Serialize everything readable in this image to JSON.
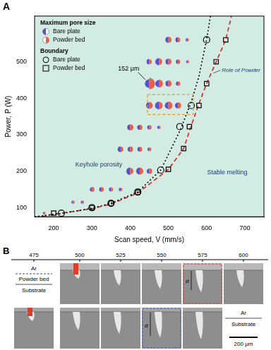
{
  "chart_data": {
    "type": "scatter",
    "title": "A",
    "x_label": "Scan speed, V (mm/s)",
    "y_label": "Power, P (W)",
    "xlim": [
      150,
      750
    ],
    "xticks": [
      200,
      300,
      400,
      500,
      600,
      700
    ],
    "ylim": [
      75,
      625
    ],
    "yticks": [
      100,
      200,
      300,
      400,
      500
    ],
    "grid": false,
    "series": [
      {
        "name": "Bare plate",
        "legend_group": "Maximum pore size",
        "color": "#5a4fcf",
        "marker": "half-circle",
        "x": [
          500,
          525,
          550,
          450,
          475,
          500,
          525,
          550,
          450,
          475,
          500,
          525,
          450,
          475,
          500,
          525,
          400,
          425,
          450,
          475,
          375,
          400,
          425,
          450,
          400,
          425,
          450,
          300,
          325,
          350,
          375,
          250,
          275,
          175
        ],
        "y": [
          560,
          560,
          560,
          500,
          500,
          500,
          500,
          500,
          440,
          440,
          440,
          440,
          380,
          380,
          380,
          380,
          320,
          320,
          320,
          320,
          260,
          260,
          260,
          260,
          200,
          200,
          200,
          150,
          150,
          150,
          150,
          115,
          115,
          85
        ],
        "pore_size": [
          45,
          30,
          15,
          35,
          60,
          40,
          20,
          10,
          90,
          60,
          40,
          20,
          50,
          70,
          60,
          40,
          40,
          30,
          20,
          12,
          40,
          30,
          25,
          15,
          70,
          60,
          30,
          20,
          25,
          20,
          15,
          10,
          12,
          8
        ]
      },
      {
        "name": "Powder bed",
        "legend_group": "Maximum pore size",
        "color": "#e8604c",
        "marker": "half-circle",
        "x": [
          500,
          525,
          550,
          450,
          475,
          500,
          525,
          550,
          450,
          475,
          500,
          525,
          450,
          475,
          500,
          525,
          400,
          425,
          450,
          475,
          375,
          400,
          425,
          450,
          400,
          425,
          450,
          300,
          325,
          350,
          375,
          250,
          275,
          175
        ],
        "y": [
          560,
          560,
          560,
          500,
          500,
          500,
          500,
          500,
          440,
          440,
          440,
          440,
          380,
          380,
          380,
          380,
          320,
          320,
          320,
          320,
          260,
          260,
          260,
          260,
          200,
          200,
          200,
          150,
          150,
          150,
          150,
          115,
          115,
          85
        ],
        "pore_size": [
          45,
          25,
          10,
          30,
          55,
          45,
          25,
          12,
          152,
          80,
          50,
          25,
          60,
          70,
          80,
          50,
          50,
          35,
          25,
          15,
          35,
          40,
          30,
          20,
          50,
          60,
          40,
          30,
          25,
          20,
          15,
          15,
          12,
          10
        ]
      },
      {
        "name": "Bare plate",
        "legend_group": "Boundary",
        "color": "#000000",
        "marker": "circle",
        "x": [
          220,
          300,
          350,
          420,
          480,
          530,
          560,
          600
        ],
        "y": [
          85,
          100,
          112,
          143,
          203,
          322,
          380,
          560
        ]
      },
      {
        "name": "Powder bed",
        "legend_group": "Boundary",
        "color": "#000000",
        "marker": "square",
        "x": [
          200,
          300,
          350,
          420,
          500,
          540,
          555,
          580,
          600,
          625,
          650
        ],
        "y": [
          85,
          100,
          112,
          142,
          205,
          262,
          322,
          380,
          440,
          500,
          560
        ]
      }
    ],
    "curves": [
      {
        "color": "#000000",
        "line_style": "dotted",
        "x": [
          150,
          220,
          300,
          350,
          420,
          480,
          530,
          560,
          580,
          600,
          610
        ],
        "y": [
          75,
          84,
          98,
          112,
          143,
          203,
          310,
          390,
          460,
          560,
          625
        ]
      },
      {
        "color": "#e02020",
        "line_style": "dashed",
        "x": [
          150,
          200,
          300,
          350,
          420,
          500,
          540,
          560,
          580,
          600,
          625,
          650,
          665
        ],
        "y": [
          72,
          82,
          97,
          110,
          140,
          205,
          262,
          325,
          385,
          440,
          500,
          560,
          625
        ]
      }
    ],
    "regions": [
      {
        "label": "Keyhole porosity",
        "color": "#fbf6d2"
      },
      {
        "label": "Role of Powder",
        "color": "#cbbdf0"
      },
      {
        "label": "Stable melting",
        "color": "#d2ebe3"
      }
    ],
    "annotations": [
      {
        "text": "152 μm"
      }
    ],
    "highlight_box": {
      "x": [
        445,
        565
      ],
      "y": [
        355,
        410
      ],
      "color": "#e0a020",
      "line_style": "dashed"
    }
  },
  "panel_b": {
    "label": "B",
    "scan_speeds": [
      475,
      500,
      525,
      550,
      575,
      600
    ],
    "top_row_labels": [
      "Ar",
      "Powder bed",
      "Substrate"
    ],
    "bottom_row_labels": [
      "Ar",
      "Substrate"
    ],
    "depth_labels": [
      "d",
      "d"
    ],
    "scale_bar": "200 μm"
  }
}
